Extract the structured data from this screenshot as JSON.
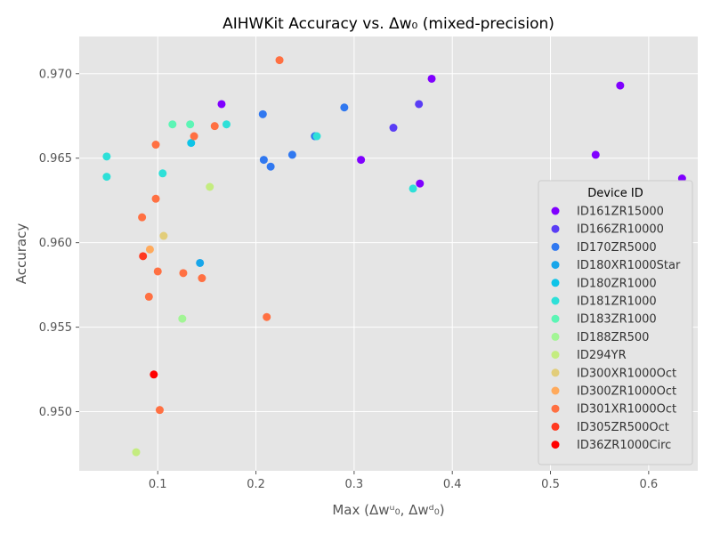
{
  "chart_data": {
    "type": "scatter",
    "title": "AIHWKit Accuracy vs. Δw₀ (mixed-precision)",
    "xlabel": "Max (Δwᵘ₀, Δwᵈ₀)",
    "ylabel": "Accuracy",
    "xlim": [
      0.02,
      0.65
    ],
    "ylim": [
      0.9465,
      0.9722
    ],
    "xticks": [
      0.1,
      0.2,
      0.3,
      0.4,
      0.5,
      0.6
    ],
    "xtick_labels": [
      "0.1",
      "0.2",
      "0.3",
      "0.4",
      "0.5",
      "0.6"
    ],
    "yticks": [
      0.95,
      0.955,
      0.96,
      0.965,
      0.97
    ],
    "ytick_labels": [
      "0.950",
      "0.955",
      "0.960",
      "0.965",
      "0.970"
    ],
    "grid": true,
    "legend_title": "Device ID",
    "legend_position": "right",
    "series": [
      {
        "name": "ID161ZR15000",
        "color": "#8000ff",
        "points": [
          [
            0.165,
            0.9682
          ],
          [
            0.379,
            0.9697
          ],
          [
            0.307,
            0.9649
          ],
          [
            0.367,
            0.9635
          ],
          [
            0.546,
            0.9652
          ],
          [
            0.571,
            0.9693
          ],
          [
            0.634,
            0.9638
          ]
        ]
      },
      {
        "name": "ID166ZR10000",
        "color": "#5a3df5",
        "points": [
          [
            0.366,
            0.9682
          ],
          [
            0.34,
            0.9668
          ]
        ]
      },
      {
        "name": "ID170ZR5000",
        "color": "#3078f0",
        "points": [
          [
            0.207,
            0.9676
          ],
          [
            0.29,
            0.968
          ],
          [
            0.26,
            0.9663
          ],
          [
            0.237,
            0.9652
          ],
          [
            0.208,
            0.9649
          ],
          [
            0.215,
            0.9645
          ]
        ]
      },
      {
        "name": "ID180XR1000Star",
        "color": "#17a6ea",
        "points": [
          [
            0.143,
            0.9588
          ]
        ]
      },
      {
        "name": "ID180ZR1000",
        "color": "#0ec4e8",
        "points": [
          [
            0.134,
            0.9659
          ]
        ]
      },
      {
        "name": "ID181ZR1000",
        "color": "#2ee0d8",
        "points": [
          [
            0.048,
            0.9651
          ],
          [
            0.048,
            0.9639
          ],
          [
            0.105,
            0.9641
          ],
          [
            0.17,
            0.967
          ],
          [
            0.262,
            0.9663
          ],
          [
            0.36,
            0.9632
          ]
        ]
      },
      {
        "name": "ID183ZR1000",
        "color": "#5cf5b5",
        "points": [
          [
            0.115,
            0.967
          ],
          [
            0.133,
            0.967
          ]
        ]
      },
      {
        "name": "ID188ZR500",
        "color": "#a2f595",
        "points": [
          [
            0.125,
            0.9555
          ]
        ]
      },
      {
        "name": "ID294YR",
        "color": "#c4ec80",
        "points": [
          [
            0.153,
            0.9633
          ],
          [
            0.078,
            0.9476
          ]
        ]
      },
      {
        "name": "ID300XR1000Oct",
        "color": "#e2cd7a",
        "points": [
          [
            0.106,
            0.9604
          ]
        ]
      },
      {
        "name": "ID300ZR1000Oct",
        "color": "#ffaa5c",
        "points": [
          [
            0.092,
            0.9596
          ]
        ]
      },
      {
        "name": "ID301XR1000Oct",
        "color": "#ff7042",
        "points": [
          [
            0.224,
            0.9708
          ],
          [
            0.158,
            0.9669
          ],
          [
            0.137,
            0.9663
          ],
          [
            0.098,
            0.9658
          ],
          [
            0.098,
            0.9626
          ],
          [
            0.084,
            0.9615
          ],
          [
            0.1,
            0.9583
          ],
          [
            0.126,
            0.9582
          ],
          [
            0.145,
            0.9579
          ],
          [
            0.091,
            0.9568
          ],
          [
            0.211,
            0.9556
          ],
          [
            0.102,
            0.9501
          ]
        ]
      },
      {
        "name": "ID305ZR500Oct",
        "color": "#ff3920",
        "points": [
          [
            0.085,
            0.9592
          ]
        ]
      },
      {
        "name": "ID36ZR1000Circ",
        "color": "#ff0000",
        "points": [
          [
            0.096,
            0.9522
          ]
        ]
      }
    ]
  }
}
